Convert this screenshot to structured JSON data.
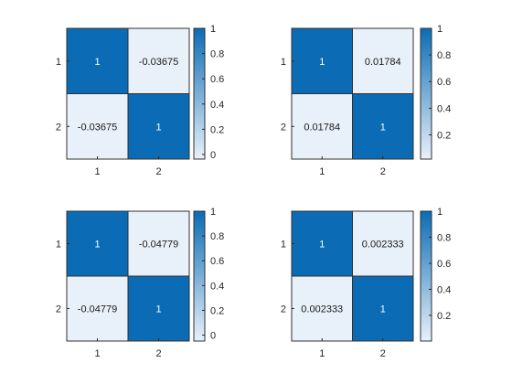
{
  "chart_data": [
    {
      "type": "heatmap",
      "x_categories": [
        "1",
        "2"
      ],
      "y_categories": [
        "1",
        "2"
      ],
      "values": [
        [
          1,
          -0.03675
        ],
        [
          -0.03675,
          1
        ]
      ],
      "labels": [
        [
          "1",
          "-0.03675"
        ],
        [
          "-0.03675",
          "1"
        ]
      ],
      "color_limits": [
        -0.03675,
        1
      ],
      "colorbar_ticks": [
        "0",
        "0.2",
        "0.4",
        "0.6",
        "0.8",
        "1"
      ],
      "colorbar_tick_values": [
        0,
        0.2,
        0.4,
        0.6,
        0.8,
        1
      ]
    },
    {
      "type": "heatmap",
      "x_categories": [
        "1",
        "2"
      ],
      "y_categories": [
        "1",
        "2"
      ],
      "values": [
        [
          1,
          0.01784
        ],
        [
          0.01784,
          1
        ]
      ],
      "labels": [
        [
          "1",
          "0.01784"
        ],
        [
          "0.01784",
          "1"
        ]
      ],
      "color_limits": [
        0.01784,
        1
      ],
      "colorbar_ticks": [
        "0.2",
        "0.4",
        "0.6",
        "0.8",
        "1"
      ],
      "colorbar_tick_values": [
        0.2,
        0.4,
        0.6,
        0.8,
        1
      ]
    },
    {
      "type": "heatmap",
      "x_categories": [
        "1",
        "2"
      ],
      "y_categories": [
        "1",
        "2"
      ],
      "values": [
        [
          1,
          -0.04779
        ],
        [
          -0.04779,
          1
        ]
      ],
      "labels": [
        [
          "1",
          "-0.04779"
        ],
        [
          "-0.04779",
          "1"
        ]
      ],
      "color_limits": [
        -0.04779,
        1
      ],
      "colorbar_ticks": [
        "0",
        "0.2",
        "0.4",
        "0.6",
        "0.8",
        "1"
      ],
      "colorbar_tick_values": [
        0,
        0.2,
        0.4,
        0.6,
        0.8,
        1
      ]
    },
    {
      "type": "heatmap",
      "x_categories": [
        "1",
        "2"
      ],
      "y_categories": [
        "1",
        "2"
      ],
      "values": [
        [
          1,
          0.002333
        ],
        [
          0.002333,
          1
        ]
      ],
      "labels": [
        [
          "1",
          "0.002333"
        ],
        [
          "0.002333",
          "1"
        ]
      ],
      "color_limits": [
        0.002333,
        1
      ],
      "colorbar_ticks": [
        "0.2",
        "0.4",
        "0.6",
        "0.8",
        "1"
      ],
      "colorbar_tick_values": [
        0.2,
        0.4,
        0.6,
        0.8,
        1
      ]
    }
  ],
  "colors": {
    "high": "#0b6cb5",
    "low": "#e8f1fa",
    "cell_border": "#303030",
    "text_on_dark": "#ffffff",
    "text_on_light": "#1a1a1a"
  }
}
